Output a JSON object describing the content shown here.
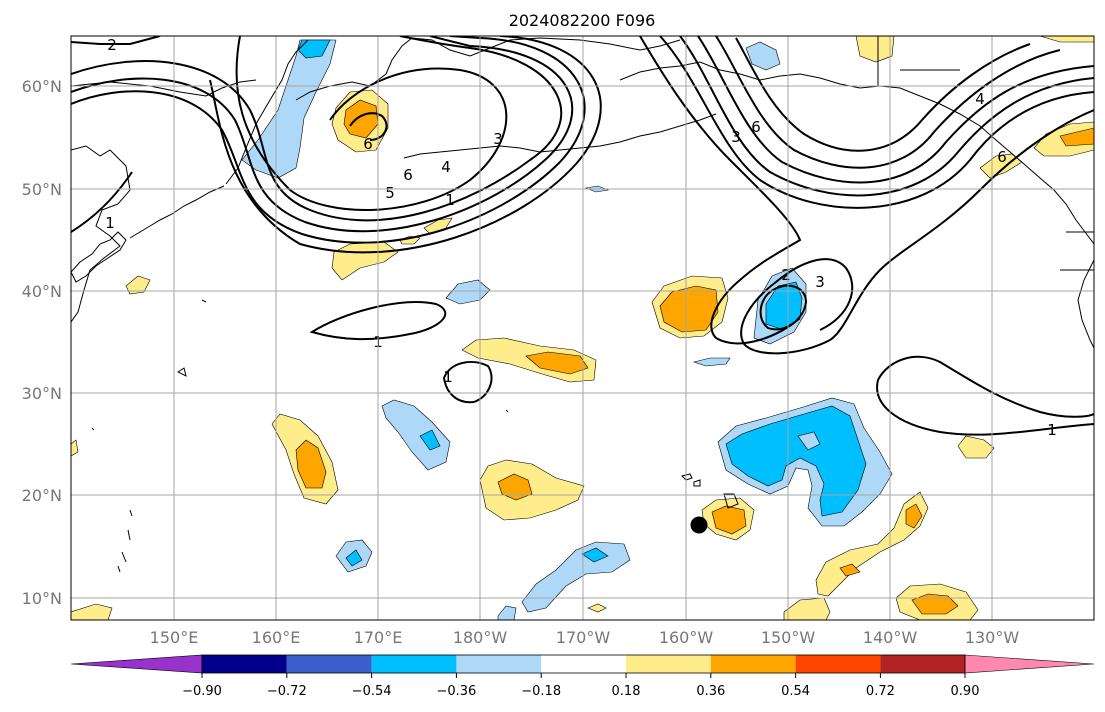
{
  "title": "2024082200 F096",
  "lon_labels": [
    "150°E",
    "160°E",
    "170°E",
    "180°W",
    "170°W",
    "160°W",
    "150°W",
    "140°W",
    "130°W"
  ],
  "lat_labels": [
    "60°N",
    "50°N",
    "40°N",
    "30°N",
    "20°N",
    "10°N"
  ],
  "colorbar": {
    "colors": [
      "#9932cc",
      "#00008b",
      "#3a5fcd",
      "#00bfff",
      "#add8f7",
      "#ffffff",
      "#ffec8b",
      "#ffa500",
      "#ff4500",
      "#b22222",
      "#ff88b0"
    ],
    "tick_labels": [
      "−0.90",
      "−0.72",
      "−0.54",
      "−0.36",
      "−0.18",
      "0.18",
      "0.36",
      "0.54",
      "0.72",
      "0.90"
    ]
  },
  "contour_labels": [
    "2",
    "6",
    "6",
    "5",
    "4",
    "3",
    "1",
    "1",
    "1",
    "1",
    "3",
    "6",
    "6",
    "4",
    "2",
    "3",
    "1"
  ],
  "colors": {
    "neg_light": "#add8f7",
    "neg_mid": "#00bfff",
    "pos_light": "#ffec8b",
    "pos_mid": "#ffa500"
  }
}
